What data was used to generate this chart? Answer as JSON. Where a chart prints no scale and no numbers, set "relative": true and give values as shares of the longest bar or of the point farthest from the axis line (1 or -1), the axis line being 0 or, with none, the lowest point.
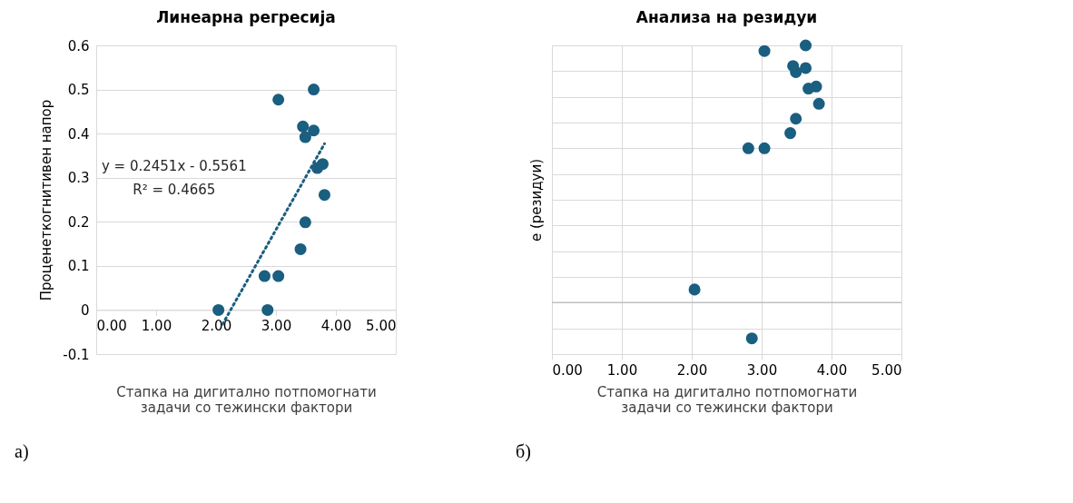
{
  "chart_data": [
    {
      "type": "scatter",
      "title": "Линеарна регресија",
      "xlabel": "Стапка на дигитално потпомогнати задачи со тежински фактори",
      "ylabel": "Проценеткогнитивен напор",
      "x": [
        2.04,
        2.86,
        2.81,
        3.04,
        3.04,
        3.63,
        3.45,
        3.63,
        3.49,
        3.78,
        3.69,
        3.81,
        3.49,
        3.41
      ],
      "series": [
        {
          "color": "#1a5e80",
          "marker": "circle",
          "values": [
            0,
            0,
            0.077,
            0.077,
            0.477,
            0.5,
            0.416,
            0.407,
            0.392,
            0.331,
            0.322,
            0.261,
            0.199,
            0.138
          ]
        },
        {
          "type": "line",
          "color": "#1a5e80",
          "line_style": "dotted",
          "x": [
            2.11,
            3.81
          ],
          "values": [
            -0.032,
            0.377
          ]
        }
      ],
      "xlim": [
        0,
        5
      ],
      "ylim": [
        -0.1,
        0.6
      ],
      "xticks": [
        {
          "value": 0,
          "label": "0.00"
        },
        {
          "value": 1,
          "label": "1.00"
        },
        {
          "value": 2,
          "label": "2.00"
        },
        {
          "value": 3,
          "label": "3.00"
        },
        {
          "value": 4,
          "label": "4.00"
        },
        {
          "value": 5,
          "label": "5.00"
        }
      ],
      "yticks": [
        -0.1,
        0,
        0.1,
        0.2,
        0.3,
        0.4,
        0.5,
        0.6
      ],
      "grid": "y",
      "annotations": [
        "y = 0.2451x - 0.5561",
        "R² = 0.4665",
        "а)"
      ]
    },
    {
      "type": "scatter",
      "title": "Анализа на резидуи",
      "xlabel": "Стапка на дигитално потпомогнати задачи со тежински фактори",
      "ylabel": "е (резидуи)",
      "x": [
        2.04,
        2.86,
        2.81,
        3.04,
        3.04,
        3.63,
        3.45,
        3.63,
        3.49,
        3.78,
        3.67,
        3.82,
        3.49,
        3.41
      ],
      "series": [
        {
          "color": "#1a5e80",
          "values": [
            0.051,
            -0.139,
            0.6,
            0.6,
            0.978,
            1.0,
            0.92,
            0.912,
            0.896,
            0.84,
            0.832,
            0.773,
            0.715,
            0.659
          ]
        }
      ],
      "relative": true,
      "tick_labels": "x",
      "xlim": [
        0,
        5
      ],
      "xticks": [
        {
          "value": 0,
          "label": "0.00"
        },
        {
          "value": 1,
          "label": "1.00"
        },
        {
          "value": 2,
          "label": "2.00"
        },
        {
          "value": 3,
          "label": "3.00"
        },
        {
          "value": 4,
          "label": "4.00"
        },
        {
          "value": 5,
          "label": "5.00"
        }
      ],
      "grid": true,
      "marker": "circle",
      "annotations": [
        "б)"
      ]
    }
  ]
}
